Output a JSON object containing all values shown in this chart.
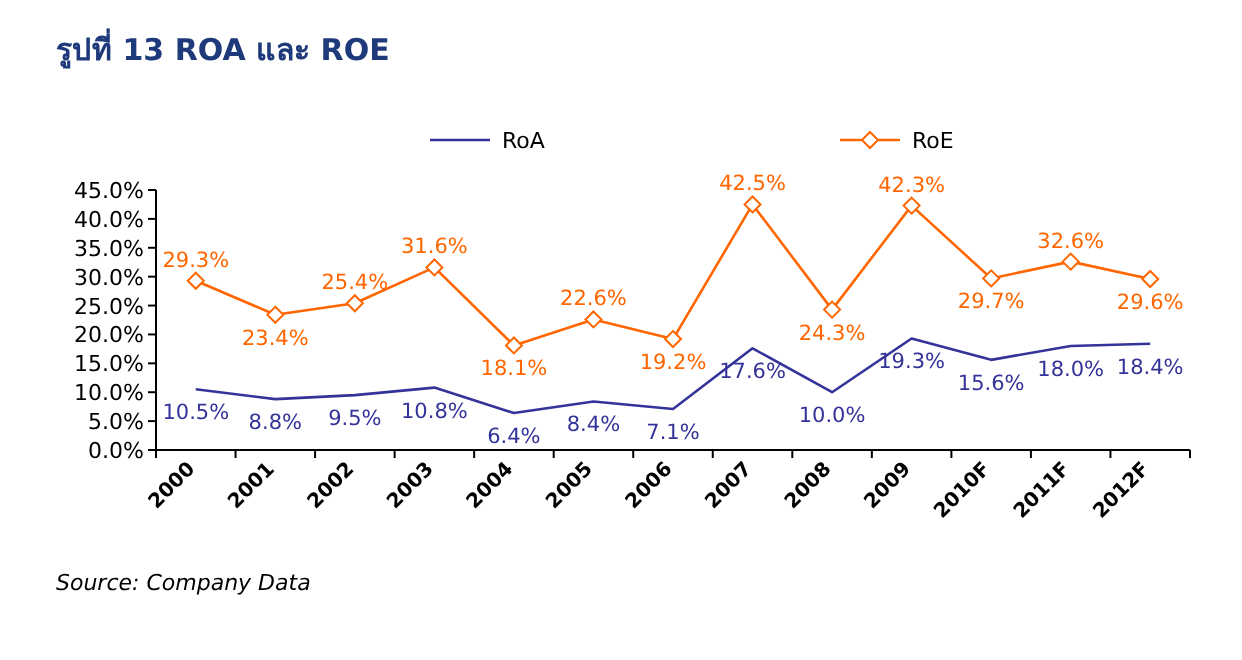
{
  "chart_data": {
    "type": "line",
    "title": "รูปที่ 13 ROA และ ROE",
    "categories": [
      "2000",
      "2001",
      "2002",
      "2003",
      "2004",
      "2005",
      "2006",
      "2007",
      "2008",
      "2009",
      "2010F",
      "2011F",
      "2012F"
    ],
    "series": [
      {
        "name": "RoA",
        "color": "#333399",
        "marker": "none",
        "values": [
          10.5,
          8.8,
          9.5,
          10.8,
          6.4,
          8.4,
          7.1,
          17.6,
          10.0,
          19.3,
          15.6,
          18.0,
          18.4
        ],
        "value_labels": [
          "10.5%",
          "8.8%",
          "9.5%",
          "10.8%",
          "6.4%",
          "8.4%",
          "7.1%",
          "17.6%",
          "10.0%",
          "19.3%",
          "15.6%",
          "18.0%",
          "18.4%"
        ]
      },
      {
        "name": "RoE",
        "color": "#ff6600",
        "marker": "diamond",
        "values": [
          29.3,
          23.4,
          25.4,
          31.6,
          18.1,
          22.6,
          19.2,
          42.5,
          24.3,
          42.3,
          29.7,
          32.6,
          29.6
        ],
        "value_labels": [
          "29.3%",
          "23.4%",
          "25.4%",
          "31.6%",
          "18.1%",
          "22.6%",
          "19.2%",
          "42.5%",
          "24.3%",
          "42.3%",
          "29.7%",
          "32.6%",
          "29.6%"
        ]
      }
    ],
    "ylim": [
      0,
      45
    ],
    "yticks": [
      {
        "value": 0,
        "label": "0.0%"
      },
      {
        "value": 5,
        "label": "5.0%"
      },
      {
        "value": 10,
        "label": "10.0%"
      },
      {
        "value": 15,
        "label": "15.0%"
      },
      {
        "value": 20,
        "label": "20.0%"
      },
      {
        "value": 25,
        "label": "25.0%"
      },
      {
        "value": 30,
        "label": "30.0%"
      },
      {
        "value": 35,
        "label": "35.0%"
      },
      {
        "value": 40,
        "label": "40.0%"
      },
      {
        "value": 45,
        "label": "45.0%"
      }
    ],
    "legend": "top",
    "grid": false,
    "annotations": [
      "Source: Company Data"
    ]
  }
}
